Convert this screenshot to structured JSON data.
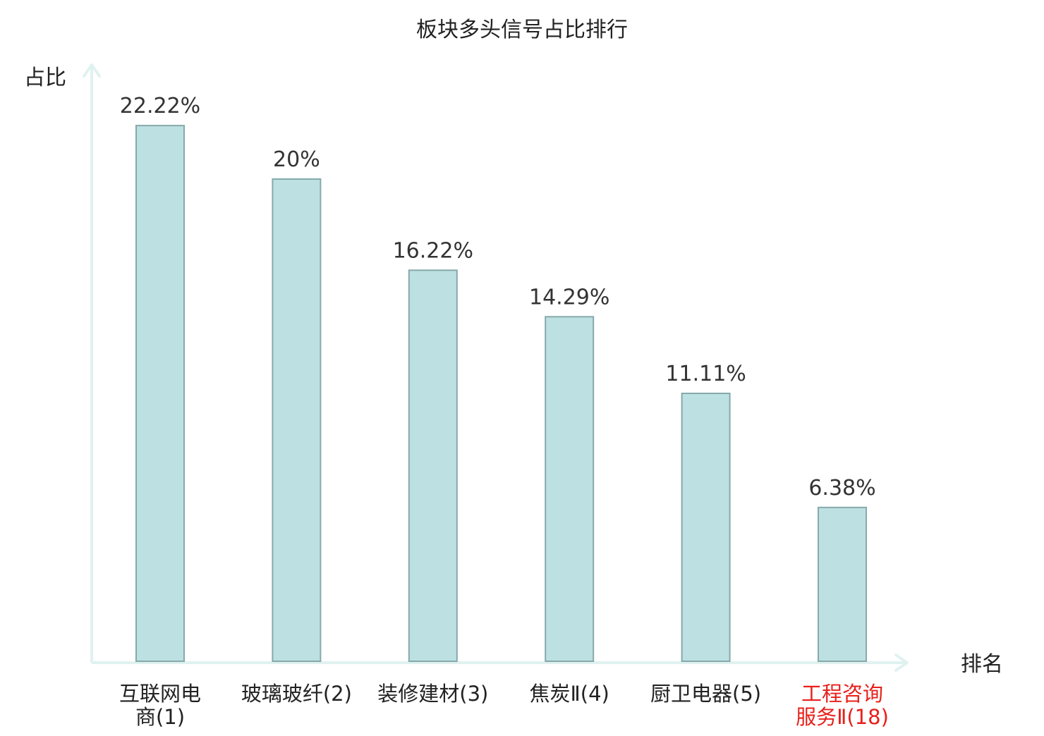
{
  "chart_data": {
    "type": "bar",
    "title": "板块多头信号占比排行",
    "ylabel": "占比",
    "xlabel": "排名",
    "categories": [
      [
        "互联网电",
        "商(1)"
      ],
      [
        "玻璃玻纤(2)"
      ],
      [
        "装修建材(3)"
      ],
      [
        "焦炭Ⅱ(4)"
      ],
      [
        "厨卫电器(5)"
      ],
      [
        "工程咨询",
        "服务Ⅱ(18)"
      ]
    ],
    "values": [
      22.22,
      20,
      16.22,
      14.29,
      11.11,
      6.38
    ],
    "value_labels": [
      "22.22%",
      "20%",
      "16.22%",
      "14.29%",
      "11.11%",
      "6.38%"
    ],
    "highlighted_index": 5,
    "ylim": [
      0,
      25
    ],
    "grid": false,
    "colors": {
      "bar_fill": "#bde0e2",
      "bar_stroke": "#86a9ab",
      "axis": "#e0f2f0",
      "text": "#333333",
      "title": "#222222",
      "highlight": "#e8201a"
    }
  }
}
